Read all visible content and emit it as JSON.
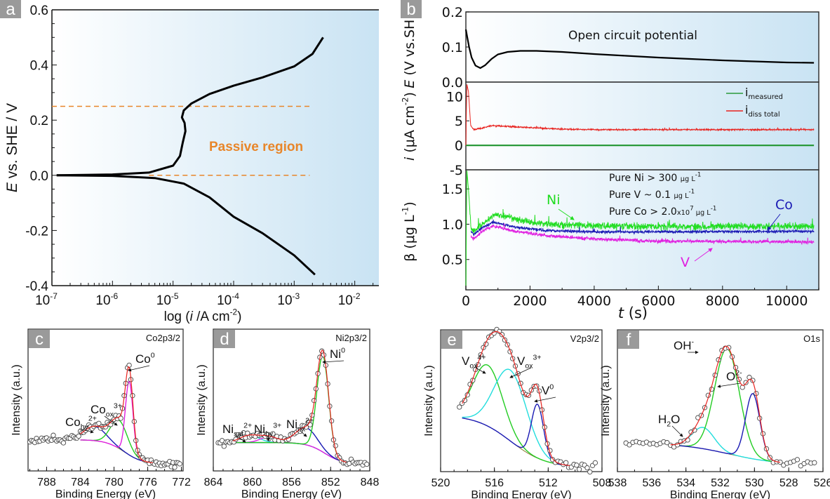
{
  "panel_labels": [
    "a",
    "b",
    "c",
    "d",
    "e",
    "f"
  ],
  "colors": {
    "background_gradient": [
      "#ffffff",
      "#c9e3f3"
    ],
    "orange": "#e8862a",
    "red": "#e8231f",
    "green": "#22cc22",
    "magenta": "#e020e0",
    "blue": "#1a1ab4",
    "cyan": "#22dddd",
    "label_box": "#9a9a9a"
  },
  "chart_data": [
    {
      "id": "a",
      "type": "line",
      "xscale": "log",
      "xlim": [
        1e-07,
        0.025
      ],
      "ylim": [
        -0.4,
        0.6
      ],
      "xtick_base": "10",
      "xtick_exponents": [
        "-7",
        "-6",
        "-5",
        "-4",
        "-3",
        "-2"
      ],
      "yticks": [
        "-0.4",
        "-0.2",
        "0.0",
        "0.2",
        "0.4",
        "0.6"
      ],
      "ylabel": [
        {
          "t": "E",
          "i": true
        },
        {
          "t": " vs. SHE / V"
        }
      ],
      "xlabel": [
        {
          "t": "log ("
        },
        {
          "t": "i",
          "i": true
        },
        {
          "t": " /A cm"
        },
        {
          "t": "-2",
          "s": "sup"
        },
        {
          "t": ")"
        }
      ],
      "annotation": "Passive region",
      "grid": false,
      "series": [
        {
          "branch": "anodic",
          "color": "#000000",
          "points": [
            [
              1.2e-07,
              0.0
            ],
            [
              1e-06,
              0.003
            ],
            [
              4e-06,
              0.01
            ],
            [
              1e-05,
              0.035
            ],
            [
              1.3e-05,
              0.07
            ],
            [
              1.45e-05,
              0.12
            ],
            [
              1.6e-05,
              0.16
            ],
            [
              1.55e-05,
              0.19
            ],
            [
              1.4e-05,
              0.21
            ],
            [
              1.5e-05,
              0.235
            ],
            [
              2e-05,
              0.26
            ],
            [
              4e-05,
              0.295
            ],
            [
              0.0001,
              0.325
            ],
            [
              0.0003,
              0.355
            ],
            [
              0.001,
              0.395
            ],
            [
              0.002,
              0.44
            ],
            [
              0.003,
              0.5
            ]
          ]
        },
        {
          "branch": "cathodic",
          "color": "#000000",
          "points": [
            [
              1.2e-07,
              0.0
            ],
            [
              1e-06,
              -0.002
            ],
            [
              5e-06,
              -0.01
            ],
            [
              1.5e-05,
              -0.03
            ],
            [
              4e-05,
              -0.08
            ],
            [
              0.0001,
              -0.15
            ],
            [
              0.0003,
              -0.21
            ],
            [
              0.001,
              -0.29
            ],
            [
              0.0022,
              -0.36
            ]
          ]
        }
      ],
      "reference_lines": [
        {
          "E": 0.25,
          "from": 1e-07,
          "to": 0.002
        },
        {
          "E": 0.0,
          "from": 4e-06,
          "to": 0.0018
        }
      ]
    },
    {
      "id": "b-ocp",
      "type": "line",
      "xlim": [
        0,
        11000
      ],
      "ylim": [
        0.0,
        0.2
      ],
      "yticks": [
        "0.0",
        "0.1",
        "0.2"
      ],
      "ylabel": [
        {
          "t": "E",
          "i": true
        },
        {
          "t": " (V vs.SHE)"
        }
      ],
      "annotation": "Open circuit potential",
      "series": [
        {
          "color": "#000000",
          "points": [
            [
              0,
              0.15
            ],
            [
              40,
              0.13
            ],
            [
              100,
              0.1
            ],
            [
              180,
              0.07
            ],
            [
              300,
              0.047
            ],
            [
              450,
              0.04
            ],
            [
              600,
              0.048
            ],
            [
              800,
              0.066
            ],
            [
              1000,
              0.079
            ],
            [
              1300,
              0.086
            ],
            [
              1700,
              0.089
            ],
            [
              2200,
              0.089
            ],
            [
              3000,
              0.086
            ],
            [
              4000,
              0.08
            ],
            [
              5000,
              0.075
            ],
            [
              6000,
              0.07
            ],
            [
              7000,
              0.066
            ],
            [
              8000,
              0.062
            ],
            [
              9000,
              0.059
            ],
            [
              10000,
              0.056
            ],
            [
              10850,
              0.055
            ]
          ]
        }
      ]
    },
    {
      "id": "b-current",
      "type": "line",
      "xlim": [
        0,
        11000
      ],
      "ylim": [
        -5,
        12.9
      ],
      "yticks": [
        "-5",
        "0",
        "5",
        "10"
      ],
      "ylabel": [
        {
          "t": "i",
          "i": true
        },
        {
          "t": " (μA cm"
        },
        {
          "t": "-2",
          "s": "sup"
        },
        {
          "t": ")"
        }
      ],
      "series": [
        {
          "name": [
            {
              "t": "i"
            },
            {
              "t": "measured",
              "s": "sub"
            }
          ],
          "color": "#2a9a3a",
          "points": [
            [
              0,
              0
            ],
            [
              10850,
              0
            ]
          ]
        },
        {
          "name": [
            {
              "t": "i"
            },
            {
              "t": "diss total",
              "s": "sub"
            }
          ],
          "color": "#e8231f",
          "noise": 0.15,
          "points": [
            [
              0,
              0
            ],
            [
              30,
              12.5
            ],
            [
              80,
              11
            ],
            [
              150,
              4
            ],
            [
              250,
              3.2
            ],
            [
              500,
              3.5
            ],
            [
              800,
              4.0
            ],
            [
              1200,
              3.9
            ],
            [
              2000,
              3.6
            ],
            [
              3000,
              3.3
            ],
            [
              4000,
              3.2
            ],
            [
              10850,
              3.2
            ]
          ]
        }
      ],
      "legend": "top-right"
    },
    {
      "id": "b-concentration",
      "type": "line",
      "xlim": [
        0,
        11000
      ],
      "ylim": [
        0.07,
        1.77
      ],
      "xticks": [
        "0",
        "2000",
        "4000",
        "6000",
        "8000",
        "10000"
      ],
      "xlabel": [
        {
          "t": "t",
          "i": true
        },
        {
          "t": " (s)"
        }
      ],
      "yticks": [
        "0.5",
        "1.0",
        "1.5"
      ],
      "ylabel": [
        {
          "t": "β (μg L"
        },
        {
          "t": "-1",
          "s": "sup"
        },
        {
          "t": ")"
        }
      ],
      "notes": [
        [
          {
            "t": "Pure Ni > 300 "
          },
          {
            "t": "μg L",
            "s": "small"
          },
          {
            "t": "-1",
            "s": "sup"
          }
        ],
        [
          {
            "t": "Pure V ~ 0.1 "
          },
          {
            "t": "μg L",
            "s": "small"
          },
          {
            "t": "-1",
            "s": "sup"
          }
        ],
        [
          {
            "t": "Pure Co > 2.0"
          },
          {
            "t": "x10",
            "s": "small"
          },
          {
            "t": "7",
            "s": "sup"
          },
          {
            "t": " μg L",
            "s": "small"
          },
          {
            "t": "-1",
            "s": "sup"
          }
        ]
      ],
      "series": [
        {
          "name": "Ni",
          "color": "#22dd22",
          "noise": 0.05,
          "points": [
            [
              0,
              0.07
            ],
            [
              30,
              1.77
            ],
            [
              80,
              1.5
            ],
            [
              160,
              0.95
            ],
            [
              250,
              0.9
            ],
            [
              500,
              1.0
            ],
            [
              900,
              1.14
            ],
            [
              1300,
              1.1
            ],
            [
              2000,
              1.03
            ],
            [
              3000,
              0.99
            ],
            [
              5000,
              0.97
            ],
            [
              10850,
              0.97
            ]
          ]
        },
        {
          "name": "Co",
          "color": "#1a1ab4",
          "noise": 0.02,
          "points": [
            [
              160,
              0.9
            ],
            [
              250,
              0.85
            ],
            [
              500,
              0.95
            ],
            [
              850,
              1.03
            ],
            [
              1500,
              0.96
            ],
            [
              2500,
              0.91
            ],
            [
              4000,
              0.89
            ],
            [
              10850,
              0.9
            ]
          ]
        },
        {
          "name": "V",
          "color": "#e020e0",
          "noise": 0.025,
          "points": [
            [
              160,
              0.82
            ],
            [
              250,
              0.8
            ],
            [
              500,
              0.9
            ],
            [
              850,
              0.98
            ],
            [
              1500,
              0.9
            ],
            [
              2500,
              0.84
            ],
            [
              4000,
              0.79
            ],
            [
              6000,
              0.76
            ],
            [
              10850,
              0.75
            ]
          ]
        }
      ]
    },
    {
      "id": "c",
      "type": "line",
      "title": "Co2p3/2",
      "xlim": [
        790.2,
        771.8
      ],
      "ylim": [
        0,
        1
      ],
      "xticks": [
        "788",
        "784",
        "780",
        "776",
        "772"
      ],
      "xlabel": "Binding Energy (eV)",
      "ylabel": "Intensity (a.u.)",
      "data_range": [
        790,
        772.2
      ],
      "fit_range": [
        784,
        775.4
      ],
      "background": {
        "high": 0.22,
        "low": 0.05,
        "center": 778.8,
        "width": 1.1
      },
      "components": [
        {
          "label": [
            {
              "t": "Co"
            },
            {
              "t": "hy",
              "s": "sub"
            },
            {
              "t": "2+",
              "s": "sup"
            }
          ],
          "color": "#1a1ab4",
          "center": 782.3,
          "height": 0.1,
          "width": 1.3
        },
        {
          "label": [
            {
              "t": "Co"
            },
            {
              "t": "ox",
              "s": "sub"
            },
            {
              "t": "3+",
              "s": "sup"
            }
          ],
          "color": "#22cc22",
          "center": 779.4,
          "height": 0.2,
          "width": 1.0
        },
        {
          "label": [
            {
              "t": "Co"
            },
            {
              "t": "0",
              "s": "sup"
            }
          ],
          "color": "#e020e0",
          "center": 778.2,
          "height": 0.52,
          "width": 0.45
        }
      ]
    },
    {
      "id": "d",
      "type": "line",
      "title": "Ni2p3/2",
      "xlim": [
        864,
        848
      ],
      "ylim": [
        0,
        1
      ],
      "xticks": [
        "864",
        "860",
        "856",
        "852",
        "848"
      ],
      "xlabel": "Binding Energy (eV)",
      "ylabel": "Intensity (a.u.)",
      "data_range": [
        863.5,
        848.3
      ],
      "fit_range": [
        862,
        850.4
      ],
      "background": {
        "high": 0.2,
        "low": 0.05,
        "center": 852.6,
        "width": 0.9
      },
      "components": [
        {
          "label": [
            {
              "t": "Ni"
            },
            {
              "t": "sat",
              "s": "sub"
            },
            {
              "t": "2+",
              "s": "sup"
            }
          ],
          "color": "#22dddd",
          "center": 860.3,
          "height": 0.05,
          "width": 1.0
        },
        {
          "label": [
            {
              "t": "Ni"
            },
            {
              "t": "hy",
              "s": "sub"
            },
            {
              "t": "3+",
              "s": "sup"
            }
          ],
          "color": "#e020e0",
          "center": 858.3,
          "height": 0.04,
          "width": 0.9
        },
        {
          "label": [
            {
              "t": "Ni"
            },
            {
              "t": "ox",
              "s": "sub"
            },
            {
              "t": "2+",
              "s": "sup"
            }
          ],
          "color": "#1a1ab4",
          "center": 854.5,
          "height": 0.12,
          "width": 1.1
        },
        {
          "label": [
            {
              "t": "Ni"
            },
            {
              "t": "0",
              "s": "sup"
            }
          ],
          "color": "#22cc22",
          "center": 852.8,
          "height": 0.68,
          "width": 0.6
        }
      ]
    },
    {
      "id": "e",
      "type": "line",
      "title": "V2p3/2",
      "xlim": [
        520,
        508
      ],
      "ylim": [
        0,
        1
      ],
      "xticks": [
        "520",
        "516",
        "512",
        "508"
      ],
      "xlabel": "Binding Energy (eV)",
      "ylabel": "Intensity (a.u.)",
      "data_range": [
        518.6,
        508.5
      ],
      "fit_range": [
        518.4,
        510.4
      ],
      "background": {
        "high": 0.4,
        "low": 0.03,
        "center": 514.8,
        "width": 1.3
      },
      "components": [
        {
          "label": [
            {
              "t": "V"
            },
            {
              "t": "ox",
              "s": "sub"
            },
            {
              "t": "4+",
              "s": "sup"
            }
          ],
          "color": "#22cc22",
          "center": 516.5,
          "height": 0.43,
          "width": 1.1
        },
        {
          "label": [
            {
              "t": "V"
            },
            {
              "t": "ox",
              "s": "sub"
            },
            {
              "t": "3+",
              "s": "sup"
            }
          ],
          "color": "#22dddd",
          "center": 514.8,
          "height": 0.5,
          "width": 1.2
        },
        {
          "label": [
            {
              "t": "V"
            },
            {
              "t": "0",
              "s": "sup"
            }
          ],
          "color": "#1a1ab4",
          "center": 512.8,
          "height": 0.38,
          "width": 0.45
        }
      ]
    },
    {
      "id": "f",
      "type": "line",
      "title": "O1s",
      "xlim": [
        538,
        526
      ],
      "ylim": [
        0,
        1
      ],
      "xticks": [
        "538",
        "536",
        "534",
        "532",
        "530",
        "528",
        "526"
      ],
      "xlabel": "Binding Energy (eV)",
      "ylabel": "Intensity (a.u.)",
      "data_range": [
        537.5,
        526.5
      ],
      "fit_range": [
        534.9,
        528.5
      ],
      "background": {
        "high": 0.2,
        "low": 0.05,
        "center": 531.5,
        "width": 1.4
      },
      "components": [
        {
          "label": [
            {
              "t": "H"
            },
            {
              "t": "2",
              "s": "sub"
            },
            {
              "t": "O"
            }
          ],
          "color": "#22dddd",
          "center": 533.0,
          "height": 0.15,
          "width": 0.65
        },
        {
          "label": [
            {
              "t": "OH"
            },
            {
              "t": "-",
              "s": "sup"
            }
          ],
          "color": "#22cc22",
          "center": 531.6,
          "height": 0.74,
          "width": 0.72
        },
        {
          "label": [
            {
              "t": "O"
            },
            {
              "t": "2-",
              "s": "sup"
            }
          ],
          "color": "#1a1ab4",
          "center": 530.1,
          "height": 0.46,
          "width": 0.42
        }
      ]
    }
  ]
}
